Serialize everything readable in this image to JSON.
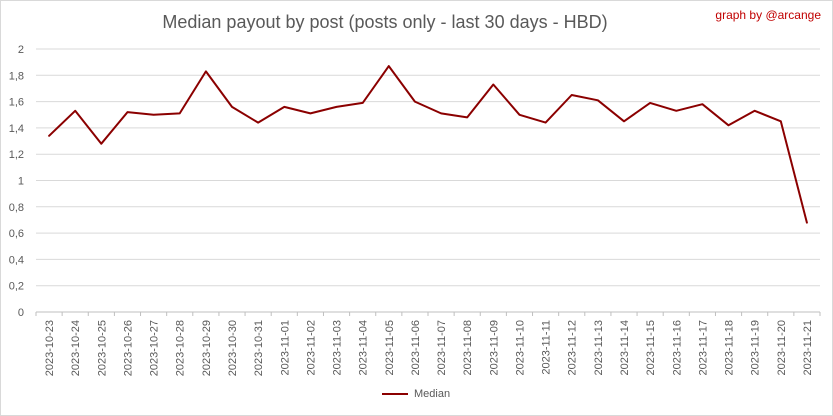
{
  "chart_data": {
    "type": "line",
    "title": "Median payout by post (posts only - last 30 days - HBD)",
    "credit": "graph by @arcange",
    "xlabel": "",
    "ylabel": "",
    "ylim": [
      0,
      2
    ],
    "y_ticks": [
      "0",
      "0,2",
      "0,4",
      "0,6",
      "0,8",
      "1",
      "1,2",
      "1,4",
      "1,6",
      "1,8",
      "2"
    ],
    "categories": [
      "2023-10-23",
      "2023-10-24",
      "2023-10-25",
      "2023-10-26",
      "2023-10-27",
      "2023-10-28",
      "2023-10-29",
      "2023-10-30",
      "2023-10-31",
      "2023-11-01",
      "2023-11-02",
      "2023-11-03",
      "2023-11-04",
      "2023-11-05",
      "2023-11-06",
      "2023-11-07",
      "2023-11-08",
      "2023-11-09",
      "2023-11-10",
      "2023-11-11",
      "2023-11-12",
      "2023-11-13",
      "2023-11-14",
      "2023-11-15",
      "2023-11-16",
      "2023-11-17",
      "2023-11-18",
      "2023-11-19",
      "2023-11-20",
      "2023-11-21"
    ],
    "series": [
      {
        "name": "Median",
        "color": "#8b0000",
        "values": [
          1.34,
          1.53,
          1.28,
          1.52,
          1.5,
          1.51,
          1.83,
          1.56,
          1.44,
          1.56,
          1.51,
          1.56,
          1.59,
          1.87,
          1.6,
          1.51,
          1.48,
          1.73,
          1.5,
          1.44,
          1.65,
          1.61,
          1.45,
          1.59,
          1.53,
          1.58,
          1.42,
          1.53,
          1.45,
          0.68
        ]
      }
    ],
    "grid": true,
    "legend_position": "bottom"
  }
}
